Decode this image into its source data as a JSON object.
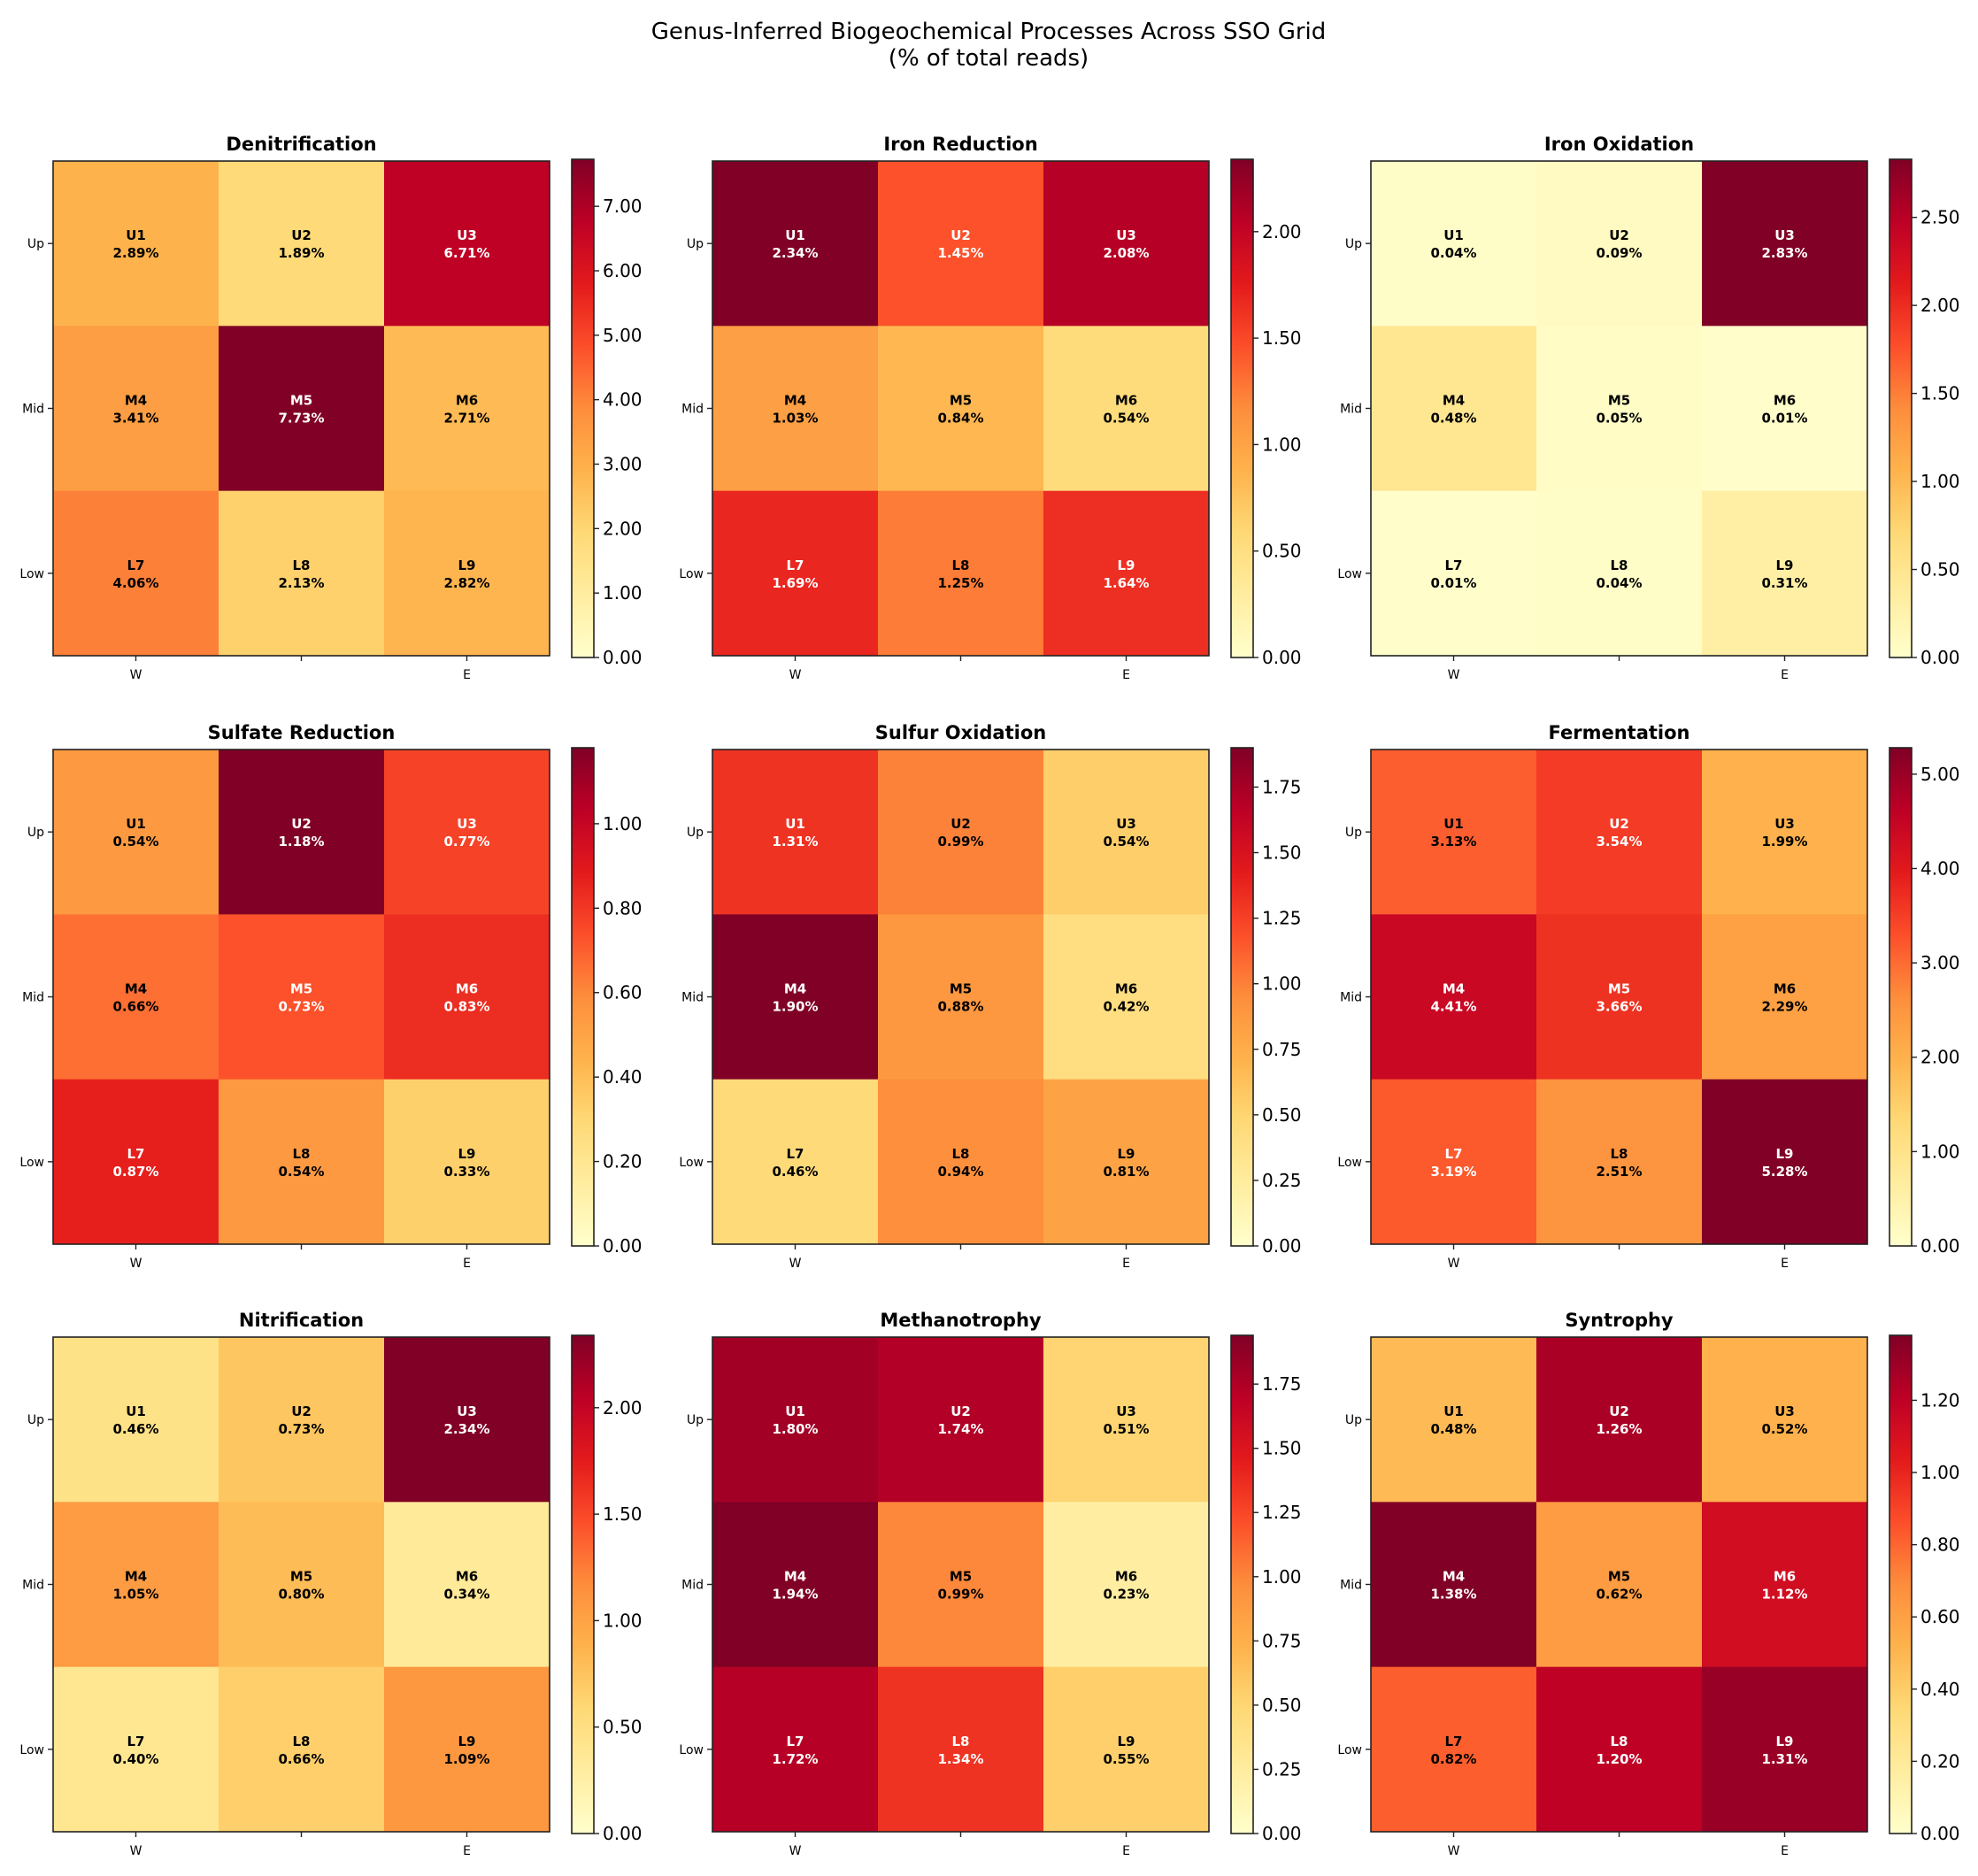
{
  "title_line1": "Genus-Inferred Biogeochemical Processes Across SSO Grid",
  "title_line2": "(% of total reads)",
  "chart_data": {
    "type": "heatmap",
    "colormap": "YlOrRd",
    "colormap_stops": [
      "#ffffcc",
      "#ffeda0",
      "#fed976",
      "#feb24c",
      "#fd8d3c",
      "#fc4e2a",
      "#e31a1c",
      "#bd0026",
      "#800026"
    ],
    "x_ticklabels": [
      "W",
      "",
      "E"
    ],
    "y_ticklabels": [
      "Up",
      "Mid",
      "Low"
    ],
    "cell_labels": [
      [
        "U1",
        "U2",
        "U3"
      ],
      [
        "M4",
        "M5",
        "M6"
      ],
      [
        "L7",
        "L8",
        "L9"
      ]
    ],
    "value_suffix": "%",
    "panels": [
      {
        "title": "Denitrification",
        "values": [
          [
            2.89,
            1.89,
            6.71
          ],
          [
            3.41,
            7.73,
            2.71
          ],
          [
            4.06,
            2.13,
            2.82
          ]
        ],
        "vmin": 0,
        "vmax": 7.73,
        "colorbar_ticks": [
          "0.00",
          "1.00",
          "2.00",
          "3.00",
          "4.00",
          "5.00",
          "6.00",
          "7.00"
        ]
      },
      {
        "title": "Iron Reduction",
        "values": [
          [
            2.34,
            1.45,
            2.08
          ],
          [
            1.03,
            0.84,
            0.54
          ],
          [
            1.69,
            1.25,
            1.64
          ]
        ],
        "vmin": 0,
        "vmax": 2.34,
        "colorbar_ticks": [
          "0.00",
          "0.50",
          "1.00",
          "1.50",
          "2.00"
        ]
      },
      {
        "title": "Iron Oxidation",
        "values": [
          [
            0.04,
            0.09,
            2.83
          ],
          [
            0.48,
            0.05,
            0.01
          ],
          [
            0.01,
            0.04,
            0.31
          ]
        ],
        "vmin": 0,
        "vmax": 2.83,
        "colorbar_ticks": [
          "0.00",
          "0.50",
          "1.00",
          "1.50",
          "2.00",
          "2.50"
        ]
      },
      {
        "title": "Sulfate Reduction",
        "values": [
          [
            0.54,
            1.18,
            0.77
          ],
          [
            0.66,
            0.73,
            0.83
          ],
          [
            0.87,
            0.54,
            0.33
          ]
        ],
        "vmin": 0,
        "vmax": 1.18,
        "colorbar_ticks": [
          "0.00",
          "0.20",
          "0.40",
          "0.60",
          "0.80",
          "1.00"
        ]
      },
      {
        "title": "Sulfur Oxidation",
        "values": [
          [
            1.31,
            0.99,
            0.54
          ],
          [
            1.9,
            0.88,
            0.42
          ],
          [
            0.46,
            0.94,
            0.81
          ]
        ],
        "vmin": 0,
        "vmax": 1.9,
        "colorbar_ticks": [
          "0.00",
          "0.25",
          "0.50",
          "0.75",
          "1.00",
          "1.25",
          "1.50",
          "1.75"
        ]
      },
      {
        "title": "Fermentation",
        "values": [
          [
            3.13,
            3.54,
            1.99
          ],
          [
            4.41,
            3.66,
            2.29
          ],
          [
            3.19,
            2.51,
            5.28
          ]
        ],
        "vmin": 0,
        "vmax": 5.28,
        "colorbar_ticks": [
          "0.00",
          "1.00",
          "2.00",
          "3.00",
          "4.00",
          "5.00"
        ]
      },
      {
        "title": "Nitrification",
        "values": [
          [
            0.46,
            0.73,
            2.34
          ],
          [
            1.05,
            0.8,
            0.34
          ],
          [
            0.4,
            0.66,
            1.09
          ]
        ],
        "vmin": 0,
        "vmax": 2.34,
        "colorbar_ticks": [
          "0.00",
          "0.50",
          "1.00",
          "1.50",
          "2.00"
        ]
      },
      {
        "title": "Methanotrophy",
        "values": [
          [
            1.8,
            1.74,
            0.51
          ],
          [
            1.94,
            0.99,
            0.23
          ],
          [
            1.72,
            1.34,
            0.55
          ]
        ],
        "vmin": 0,
        "vmax": 1.94,
        "colorbar_ticks": [
          "0.00",
          "0.25",
          "0.50",
          "0.75",
          "1.00",
          "1.25",
          "1.50",
          "1.75"
        ]
      },
      {
        "title": "Syntrophy",
        "values": [
          [
            0.48,
            1.26,
            0.52
          ],
          [
            1.38,
            0.62,
            1.12
          ],
          [
            0.82,
            1.2,
            1.31
          ]
        ],
        "vmin": 0,
        "vmax": 1.38,
        "colorbar_ticks": [
          "0.00",
          "0.20",
          "0.40",
          "0.60",
          "0.80",
          "1.00",
          "1.20"
        ]
      }
    ]
  }
}
